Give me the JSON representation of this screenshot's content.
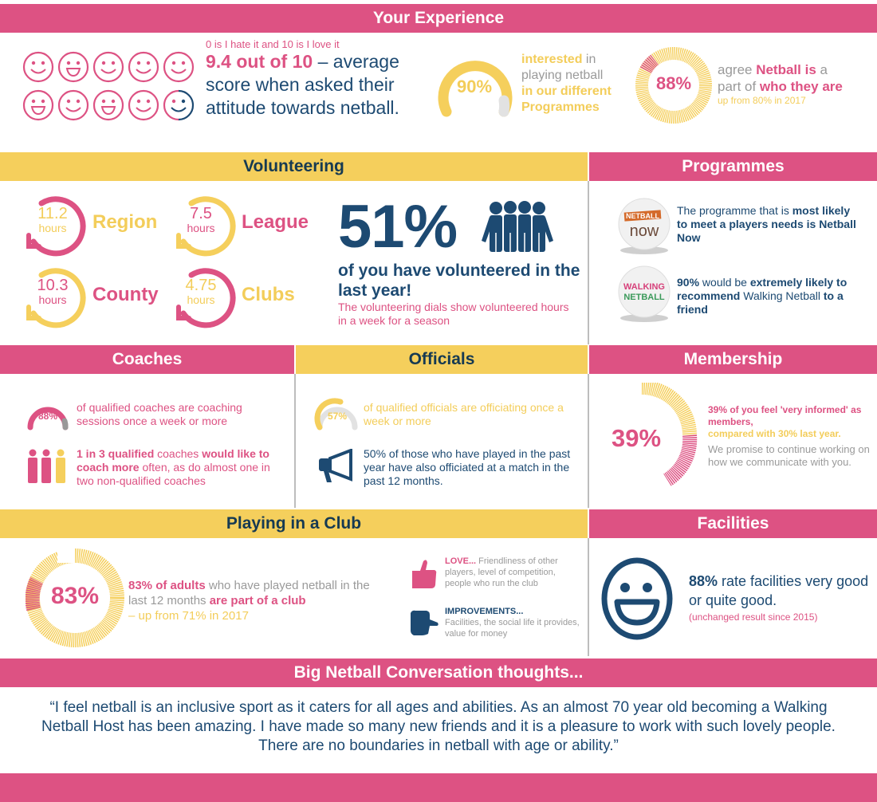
{
  "colors": {
    "pink": "#dd5283",
    "yellow": "#f5cf5c",
    "navy": "#1d4a72",
    "grey": "#9a9a9a",
    "light_grey": "#e2e2e2"
  },
  "experience": {
    "title": "Your Experience",
    "scale_note": "0 is I hate it and 10 is I love it",
    "score_highlight": "9.4 out of 10",
    "score_rest": " – average score when asked their attitude towards netball.",
    "smileys": [
      "smile",
      "grin",
      "smile",
      "smile",
      "smile",
      "grin",
      "smile",
      "grin",
      "smile",
      "partial-smile"
    ],
    "interested": {
      "percent": "90%",
      "w1": "interested",
      "w2": " in",
      "w3": "playing netball",
      "w4": "in our different",
      "w5": "Programmes"
    },
    "identity": {
      "percent": "88%",
      "w1": "agree ",
      "w2": "Netball is",
      "w3": " a",
      "w4": "part of ",
      "w5": "who they are",
      "note": "up from 80% in 2017"
    }
  },
  "volunteering": {
    "title": "Volunteering",
    "dials": [
      {
        "value": "11.2",
        "unit": "hours",
        "label": "Region"
      },
      {
        "value": "7.5",
        "unit": "hours",
        "label": "League"
      },
      {
        "value": "10.3",
        "unit": "hours",
        "label": "County"
      },
      {
        "value": "4.75",
        "unit": "hours",
        "label": "Clubs"
      }
    ],
    "big_percent": "51%",
    "headline": "of you have volunteered in the last year!",
    "note": "The volunteering dials show volunteered hours in a week for a season"
  },
  "programmes": {
    "title": "Programmes",
    "items": [
      {
        "ball_top": "NETBALL",
        "ball_bottom": "now",
        "t1": "The programme that is ",
        "t2": "most likely to meet a players needs is Netball Now"
      },
      {
        "ball_top": "WALKING",
        "ball_bottom": "NETBALL",
        "t1": "90%",
        "t2": " would be ",
        "t3": "extremely likely to recommend",
        "t4": " Walking Netball ",
        "t5": "to a friend"
      }
    ]
  },
  "coaches": {
    "title": "Coaches",
    "gauge_percent": "88%",
    "gauge_text": "of qualified coaches are coaching sessions once a week or more",
    "t1": "1 in 3 qualified",
    "t2": " coaches ",
    "t3": "would like to coach more",
    "t4": " often, as do almost one in two non-qualified coaches"
  },
  "officials": {
    "title": "Officials",
    "gauge_percent": "57%",
    "gauge_text": "of qualified officials are officiating once a week or more",
    "text": "50% of those who have played in the past year have also officiated at a match in the past 12 months."
  },
  "membership": {
    "title": "Membership",
    "percent": "39%",
    "t1": "39% of you feel 'very informed' as members,",
    "t2": "compared with 30% last year.",
    "t3": "We promise to continue working on how we communicate with you."
  },
  "club": {
    "title": "Playing in a Club",
    "percent": "83%",
    "t1": "83% of adults",
    "t2": " who have played netball in the last 12 months ",
    "t3": "are part of a club",
    "t4": "– up from 71% in 2017",
    "love_label": "LOVE...",
    "love_text": " Friendliness of other players, level of competition, people who run the club",
    "improve_label": "IMPROVEMENTS...",
    "improve_text": "Facilities, the social life it provides, value for money"
  },
  "facilities": {
    "title": "Facilities",
    "percent": "88%",
    "text": " rate facilities very good or quite good.",
    "note": "(unchanged result since 2015)"
  },
  "conversation": {
    "title": "Big Netball Conversation thoughts...",
    "quote": "“I feel netball is an inclusive sport as it caters for all ages and abilities. As an almost 70 year old becoming a Walking Netball Host has been amazing. I have made so many new friends and it is a pleasure to work with such lovely people. There are no boundaries in netball with age or ability.”"
  }
}
